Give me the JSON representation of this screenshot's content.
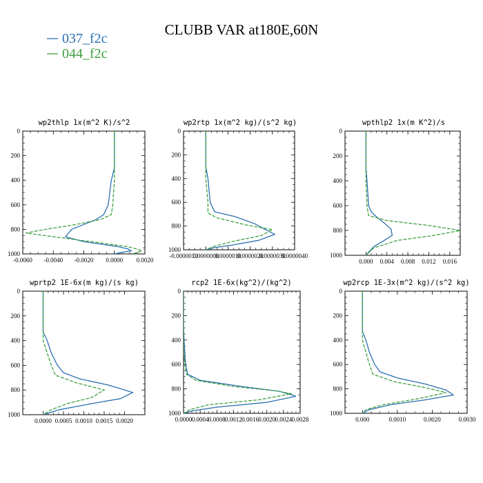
{
  "title": "CLUBB VAR at180E,60N",
  "colors": {
    "blue": "#2a6fb0",
    "green": "#3ea040"
  },
  "legend": [
    {
      "label": "037_f2c",
      "color": "#2a6fb0",
      "dash": false
    },
    {
      "label": "044_f2c",
      "color": "#3ea040",
      "dash": true
    }
  ],
  "chart_data": [
    {
      "type": "line",
      "title": "wp2thlp   1x(m^2 K)/s^2",
      "xlim": [
        -0.006,
        0.002
      ],
      "ylim": [
        1000,
        0
      ],
      "xticks": [
        -0.006,
        -0.004,
        -0.002,
        0.0,
        0.002
      ],
      "xtick_labels": [
        "-0.0060",
        "-0.0040",
        "-0.0020",
        "0.0000",
        "0.0020"
      ],
      "yticks": [
        0,
        200,
        400,
        600,
        800,
        1000
      ],
      "series": [
        {
          "name": "037_f2c",
          "points": [
            [
              0.0,
              0
            ],
            [
              0.0,
              300
            ],
            [
              -0.0002,
              400
            ],
            [
              -0.0004,
              600
            ],
            [
              -0.0007,
              680
            ],
            [
              -0.0012,
              720
            ],
            [
              -0.002,
              760
            ],
            [
              -0.0028,
              800
            ],
            [
              -0.0032,
              860
            ],
            [
              -0.002,
              900
            ],
            [
              0.0002,
              940
            ],
            [
              0.0009,
              960
            ],
            [
              0.0011,
              975
            ],
            [
              0.0004,
              990
            ],
            [
              0.0,
              1000
            ]
          ]
        },
        {
          "name": "044_f2c",
          "points": [
            [
              0.0,
              0
            ],
            [
              0.0,
              300
            ],
            [
              0.0,
              400
            ],
            [
              -0.0001,
              600
            ],
            [
              -0.0002,
              680
            ],
            [
              -0.0009,
              720
            ],
            [
              -0.0025,
              760
            ],
            [
              -0.0045,
              800
            ],
            [
              -0.0058,
              830
            ],
            [
              -0.004,
              860
            ],
            [
              -0.0015,
              900
            ],
            [
              0.0008,
              940
            ],
            [
              0.0015,
              960
            ],
            [
              0.0018,
              975
            ],
            [
              0.0012,
              1000
            ]
          ]
        }
      ]
    },
    {
      "type": "line",
      "title": "wp2rtp   1x(m^2 kg)/(s^2 kg)",
      "xlim": [
        -1e-06,
        4e-06
      ],
      "ylim": [
        1000,
        0
      ],
      "xticks": [
        -1e-06,
        0.0,
        1e-06,
        2e-06,
        3e-06,
        4e-06
      ],
      "xtick_labels": [
        "-0.0000010",
        "0.0000000",
        "0.0000010",
        "0.0000020",
        "0.0000030",
        "0.0000040"
      ],
      "yticks": [
        0,
        200,
        400,
        600,
        800,
        1000
      ],
      "series": [
        {
          "name": "037_f2c",
          "points": [
            [
              0.0,
              0
            ],
            [
              0.0,
              300
            ],
            [
              1e-07,
              400
            ],
            [
              2e-07,
              600
            ],
            [
              4e-07,
              680
            ],
            [
              1.3e-06,
              720
            ],
            [
              2.2e-06,
              780
            ],
            [
              2.7e-06,
              830
            ],
            [
              3.1e-06,
              870
            ],
            [
              2.4e-06,
              920
            ],
            [
              1.2e-06,
              960
            ],
            [
              3e-07,
              985
            ],
            [
              0.0,
              1000
            ]
          ]
        },
        {
          "name": "044_f2c",
          "points": [
            [
              0.0,
              0
            ],
            [
              0.0,
              300
            ],
            [
              0.0,
              400
            ],
            [
              1e-07,
              600
            ],
            [
              1e-07,
              690
            ],
            [
              5e-07,
              730
            ],
            [
              1.8e-06,
              790
            ],
            [
              3e-06,
              830
            ],
            [
              2.5e-06,
              880
            ],
            [
              1.2e-06,
              930
            ],
            [
              4e-07,
              970
            ],
            [
              0.0,
              1000
            ]
          ]
        }
      ]
    },
    {
      "type": "line",
      "title": "wpthlp2   1x(m K^2)/s",
      "xlim": [
        -0.004,
        0.018
      ],
      "ylim": [
        1000,
        0
      ],
      "xticks": [
        0.0,
        0.004,
        0.008,
        0.012,
        0.016
      ],
      "xtick_labels": [
        "0.000",
        "0.004",
        "0.008",
        "0.012",
        "0.016"
      ],
      "yticks": [
        0,
        200,
        400,
        600,
        800,
        1000
      ],
      "series": [
        {
          "name": "037_f2c",
          "points": [
            [
              0.0,
              0
            ],
            [
              0.0,
              300
            ],
            [
              0.0002,
              400
            ],
            [
              0.0005,
              600
            ],
            [
              0.001,
              650
            ],
            [
              0.002,
              690
            ],
            [
              0.0035,
              740
            ],
            [
              0.0048,
              790
            ],
            [
              0.005,
              840
            ],
            [
              0.0035,
              880
            ],
            [
              0.0015,
              930
            ],
            [
              0.0004,
              980
            ],
            [
              0.0,
              1000
            ]
          ]
        },
        {
          "name": "044_f2c",
          "points": [
            [
              0.0,
              0
            ],
            [
              0.0,
              300
            ],
            [
              0.0,
              400
            ],
            [
              0.0002,
              600
            ],
            [
              0.0005,
              680
            ],
            [
              0.004,
              720
            ],
            [
              0.012,
              760
            ],
            [
              0.018,
              800
            ],
            [
              0.013,
              840
            ],
            [
              0.006,
              880
            ],
            [
              0.0015,
              940
            ],
            [
              0.0,
              1000
            ]
          ]
        }
      ]
    },
    {
      "type": "line",
      "title": "wprtp2   1E-6x(m kg)/(s kg)",
      "xlim": [
        -0.0005,
        0.0025
      ],
      "ylim": [
        1000,
        0
      ],
      "xticks": [
        0.0,
        0.0005,
        0.001,
        0.0015,
        0.002
      ],
      "xtick_labels": [
        "0.0000",
        "0.0005",
        "0.0010",
        "0.0015",
        "0.0020"
      ],
      "yticks": [
        0,
        200,
        400,
        600,
        800,
        1000
      ],
      "series": [
        {
          "name": "037_f2c",
          "points": [
            [
              0.0,
              0
            ],
            [
              0.0,
              330
            ],
            [
              0.0001,
              400
            ],
            [
              0.0002,
              500
            ],
            [
              0.00035,
              600
            ],
            [
              0.0005,
              660
            ],
            [
              0.0009,
              710
            ],
            [
              0.0016,
              760
            ],
            [
              0.0022,
              820
            ],
            [
              0.0019,
              870
            ],
            [
              0.0012,
              910
            ],
            [
              0.0004,
              960
            ],
            [
              0.0,
              1000
            ]
          ]
        },
        {
          "name": "044_f2c",
          "points": [
            [
              0.0,
              0
            ],
            [
              0.0,
              330
            ],
            [
              0.0,
              400
            ],
            [
              0.0001,
              500
            ],
            [
              0.0002,
              600
            ],
            [
              0.0003,
              680
            ],
            [
              0.0008,
              740
            ],
            [
              0.0015,
              800
            ],
            [
              0.0012,
              860
            ],
            [
              0.0006,
              910
            ],
            [
              0.0002,
              960
            ],
            [
              0.0,
              1000
            ]
          ]
        }
      ]
    },
    {
      "type": "line",
      "title": "rcp2   1E-6x(kg^2)/(kg^2)",
      "xlim": [
        0.0,
        0.0028
      ],
      "ylim": [
        1000,
        0
      ],
      "xticks": [
        0.0,
        0.0004,
        0.0008,
        0.0012,
        0.0016,
        0.002,
        0.0024,
        0.0028
      ],
      "xtick_labels": [
        "0.0000",
        "0.0004",
        "0.0008",
        "0.0012",
        "0.0016",
        "0.0020",
        "0.0024",
        "0.0028"
      ],
      "yticks": [
        0,
        200,
        400,
        600,
        800,
        1000
      ],
      "series": [
        {
          "name": "037_f2c",
          "points": [
            [
              0.0,
              0
            ],
            [
              0.0,
              300
            ],
            [
              2e-05,
              450
            ],
            [
              5e-05,
              600
            ],
            [
              0.0001,
              680
            ],
            [
              0.0004,
              730
            ],
            [
              0.0014,
              780
            ],
            [
              0.0023,
              820
            ],
            [
              0.0027,
              860
            ],
            [
              0.002,
              910
            ],
            [
              0.0008,
              950
            ],
            [
              0.0002,
              980
            ],
            [
              0.0,
              1000
            ]
          ]
        },
        {
          "name": "044_f2c",
          "points": [
            [
              0.0,
              0
            ],
            [
              0.0,
              300
            ],
            [
              0.0,
              450
            ],
            [
              3e-05,
              600
            ],
            [
              7e-05,
              680
            ],
            [
              0.0003,
              730
            ],
            [
              0.0012,
              780
            ],
            [
              0.0022,
              815
            ],
            [
              0.0026,
              840
            ],
            [
              0.0018,
              890
            ],
            [
              0.0006,
              930
            ],
            [
              0.00015,
              970
            ],
            [
              0.0,
              1000
            ]
          ]
        }
      ]
    },
    {
      "type": "line",
      "title": "wp2rcp   1E-3x(m^2 kg)/(s^2 kg)",
      "xlim": [
        -0.0005,
        0.003
      ],
      "ylim": [
        1000,
        0
      ],
      "xticks": [
        0.0,
        0.001,
        0.002,
        0.003
      ],
      "xtick_labels": [
        "0.000",
        "0.0010",
        "0.0020",
        "0.0030"
      ],
      "yticks": [
        0,
        200,
        400,
        600,
        800,
        1000
      ],
      "series": [
        {
          "name": "037_f2c",
          "points": [
            [
              0.0,
              0
            ],
            [
              0.0,
              330
            ],
            [
              0.0001,
              400
            ],
            [
              0.0002,
              500
            ],
            [
              0.00035,
              600
            ],
            [
              0.0005,
              660
            ],
            [
              0.001,
              710
            ],
            [
              0.0018,
              760
            ],
            [
              0.0024,
              810
            ],
            [
              0.0026,
              850
            ],
            [
              0.0018,
              890
            ],
            [
              0.0008,
              930
            ],
            [
              0.0002,
              970
            ],
            [
              0.0,
              1000
            ]
          ]
        },
        {
          "name": "044_f2c",
          "points": [
            [
              0.0,
              0
            ],
            [
              0.0,
              330
            ],
            [
              0.0,
              400
            ],
            [
              0.0001,
              500
            ],
            [
              0.0002,
              600
            ],
            [
              0.0003,
              680
            ],
            [
              0.0009,
              740
            ],
            [
              0.0018,
              790
            ],
            [
              0.0024,
              830
            ],
            [
              0.0016,
              880
            ],
            [
              0.0006,
              930
            ],
            [
              0.0001,
              970
            ],
            [
              0.0,
              1000
            ]
          ]
        }
      ]
    }
  ]
}
